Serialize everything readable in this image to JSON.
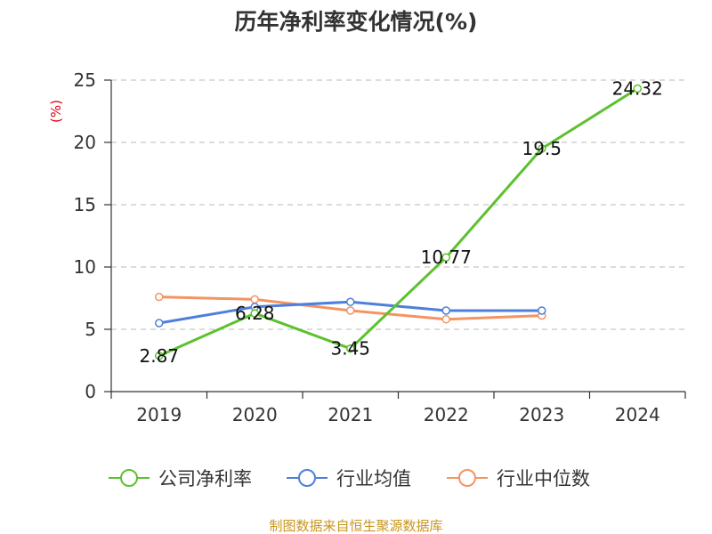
{
  "chart_data": {
    "type": "line",
    "title": "历年净利率变化情况(%)",
    "ylabel": "(%)",
    "xlabel": "",
    "categories": [
      "2019",
      "2020",
      "2021",
      "2022",
      "2023",
      "2024"
    ],
    "ylim": [
      0,
      25
    ],
    "yticks": [
      0,
      5,
      10,
      15,
      20,
      25
    ],
    "grid": "horizontal dashed",
    "legend_position": "bottom",
    "series": [
      {
        "name": "公司净利率",
        "color": "#5cc12f",
        "values": [
          2.87,
          6.28,
          3.45,
          10.77,
          19.5,
          24.32
        ],
        "labels": [
          "2.87",
          "6.28",
          "3.45",
          "10.77",
          "19.5",
          "24.32"
        ]
      },
      {
        "name": "行业均值",
        "color": "#4f7fdc",
        "values": [
          5.5,
          6.8,
          7.2,
          6.5,
          6.5,
          null
        ]
      },
      {
        "name": "行业中位数",
        "color": "#f49463",
        "values": [
          7.6,
          7.4,
          6.5,
          5.8,
          6.1,
          null
        ]
      }
    ]
  },
  "source_text": "制图数据来自恒生聚源数据库"
}
